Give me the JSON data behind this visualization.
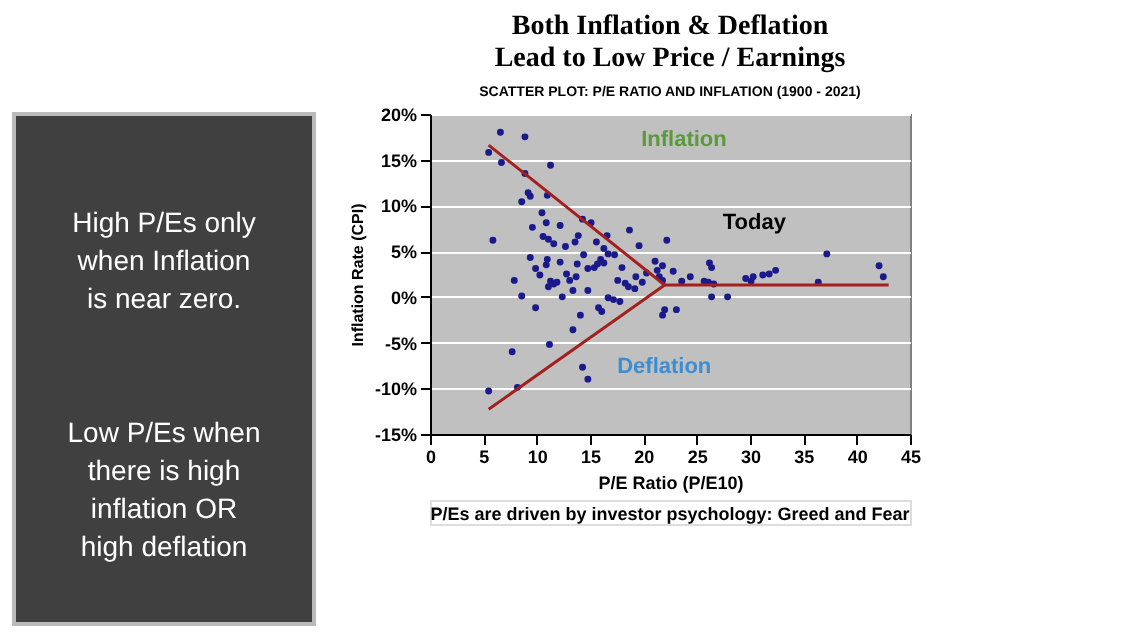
{
  "chart_data": {
    "type": "scatter",
    "title": "Both Inflation & Deflation Lead to Low Price / Earnings",
    "subtitle": "SCATTER PLOT: P/E RATIO AND INFLATION (1900 - 2021)",
    "xlabel": "P/E Ratio (P/E10)",
    "ylabel": "Inflation Rate (CPI)",
    "xlim": [
      0,
      45
    ],
    "xticks": [
      0,
      5,
      10,
      15,
      20,
      25,
      30,
      35,
      40,
      45
    ],
    "ylim": [
      -15,
      20
    ],
    "yticks": [
      {
        "value": -15,
        "label": "-15%"
      },
      {
        "value": -10,
        "label": "-10%"
      },
      {
        "value": -5,
        "label": "-5%"
      },
      {
        "value": 0,
        "label": "0%"
      },
      {
        "value": 5,
        "label": "5%"
      },
      {
        "value": 10,
        "label": "10%"
      },
      {
        "value": 15,
        "label": "15%"
      },
      {
        "value": 20,
        "label": "20%"
      }
    ],
    "grid": "y",
    "marker": "circle",
    "series": [
      {
        "color": "#1a1a8c",
        "x": [
          5.5,
          6.6,
          6.7,
          8.9,
          11.3,
          8.9,
          9.2,
          9.4,
          8.6,
          11.0,
          5.9,
          9.6,
          10.5,
          10.9,
          10.6,
          11.1,
          11.6,
          12.2,
          12.7,
          14.3,
          15.1,
          13.9,
          13.6,
          15.6,
          16.3,
          16.6,
          18.7,
          19.6,
          9.4,
          11.0,
          9.9,
          10.9,
          12.2,
          10.3,
          11.3,
          11.6,
          11.1,
          11.9,
          12.8,
          13.1,
          13.7,
          13.8,
          14.4,
          14.8,
          15.4,
          15.7,
          16.0,
          16.3,
          16.7,
          17.3,
          18.0,
          17.6,
          18.3,
          18.6,
          19.2,
          19.3,
          19.9,
          20.3,
          21.1,
          21.3,
          21.8,
          21.8,
          22.2,
          21.5,
          7.9,
          8.6,
          9.9,
          12.4,
          13.4,
          14.8,
          15.8,
          16.1,
          16.7,
          17.2,
          17.8,
          14.1,
          13.4,
          11.2,
          7.7,
          5.5,
          8.2,
          14.3,
          14.8,
          21.8,
          22.0,
          23.1,
          22.8,
          23.6,
          24.4,
          25.7,
          26.2,
          26.4,
          26.1,
          26.6,
          26.4,
          27.9,
          29.6,
          30.1,
          30.3,
          31.2,
          31.8,
          32.4,
          36.4,
          37.2,
          42.1,
          42.5
        ],
        "values": [
          15.8,
          18.0,
          14.7,
          17.5,
          14.4,
          13.5,
          11.4,
          11.0,
          10.4,
          11.1,
          6.2,
          7.6,
          9.2,
          8.1,
          6.6,
          6.3,
          5.8,
          7.8,
          5.5,
          8.5,
          8.1,
          6.7,
          6.0,
          6.0,
          5.3,
          6.7,
          7.3,
          5.6,
          4.3,
          4.1,
          3.1,
          3.5,
          3.8,
          2.4,
          1.7,
          1.4,
          1.1,
          1.6,
          2.5,
          1.8,
          2.2,
          3.6,
          4.6,
          3.1,
          3.2,
          3.6,
          4.1,
          3.7,
          4.7,
          4.6,
          3.2,
          1.8,
          1.5,
          1.1,
          0.9,
          2.2,
          1.6,
          2.6,
          3.9,
          2.9,
          3.4,
          1.8,
          6.2,
          2.2,
          1.8,
          0.1,
          -1.2,
          0.0,
          0.7,
          0.7,
          -1.2,
          -1.6,
          -0.1,
          -0.3,
          -0.5,
          -2.0,
          -3.6,
          -5.2,
          -6.0,
          -10.3,
          -9.9,
          -7.7,
          -9.0,
          -2.0,
          -1.4,
          -1.4,
          2.8,
          1.7,
          2.2,
          1.7,
          3.7,
          3.2,
          1.6,
          1.4,
          0.0,
          0.0,
          2.0,
          1.7,
          2.2,
          2.4,
          2.5,
          2.9,
          1.6,
          4.7,
          3.4,
          2.2
        ]
      },
      {
        "type": "line",
        "marker": "none",
        "color": "#a3201f",
        "x": [
          5.5,
          22
        ],
        "values": [
          16.6,
          1.3
        ]
      },
      {
        "type": "line",
        "marker": "none",
        "color": "#a3201f",
        "x": [
          5.5,
          22
        ],
        "values": [
          -12.3,
          1.3
        ]
      },
      {
        "type": "line",
        "marker": "none",
        "color": "#a3201f",
        "x": [
          22,
          43
        ],
        "values": [
          1.3,
          1.3
        ]
      }
    ],
    "annotations": [
      "High P/Es only when Inflation is near zero.",
      "Low P/Es when there is high inflation OR high deflation",
      "P/Es are driven by investor psychology: Greed and Fear",
      "Inflation",
      "Deflation",
      "Today"
    ]
  }
}
